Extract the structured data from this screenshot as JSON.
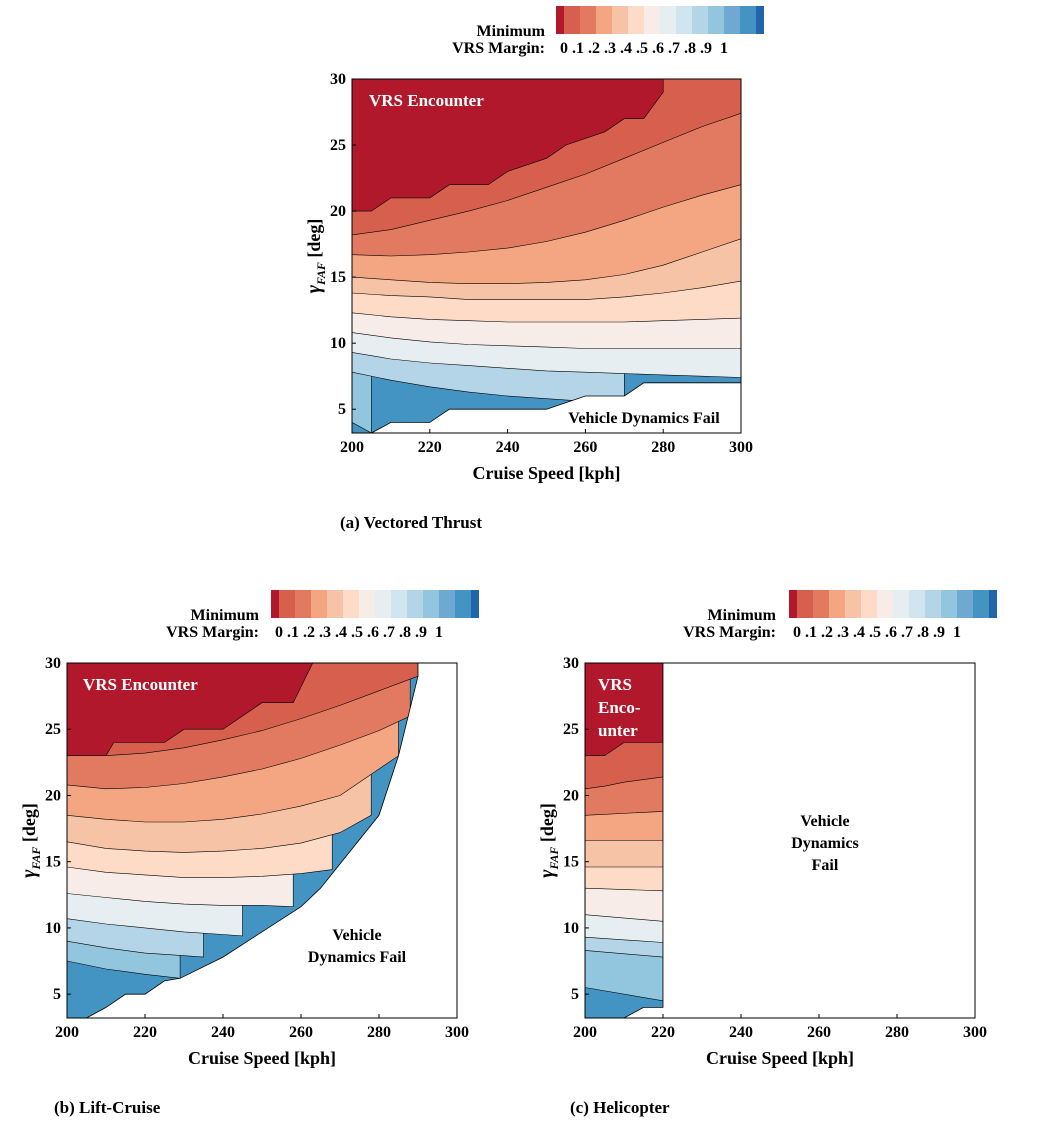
{
  "colorbar": {
    "title_line1": "Minimum",
    "title_line2": "VRS Margin:",
    "tick_labels": [
      "0",
      ".1",
      ".2",
      ".3",
      ".4",
      ".5",
      ".6",
      ".7",
      ".8",
      ".9",
      "1"
    ],
    "colors": [
      "#b2182b",
      "#d6604d",
      "#e17a61",
      "#f4a582",
      "#f7c3a6",
      "#fddbc7",
      "#f7ece7",
      "#e7eef1",
      "#d1e5f0",
      "#b4d4e7",
      "#92c5de",
      "#6fa8d0",
      "#4393c3",
      "#2166ac"
    ]
  },
  "regions": {
    "red_label": "VRS Encounter",
    "helicopter_red_label": [
      "VRS",
      "Enco-",
      "unter"
    ]
  },
  "chart_data": [
    {
      "type": "contour",
      "id": "a",
      "caption": "(a) Vectored Thrust",
      "xlabel": "Cruise Speed [kph]",
      "ylabel_symbol": "γ",
      "ylabel_sub": "FAF",
      "ylabel_unit": "[deg]",
      "xlim": [
        200,
        300
      ],
      "ylim": [
        3.2,
        30
      ],
      "xticks": [
        200,
        220,
        240,
        260,
        280,
        300
      ],
      "yticks": [
        5,
        10,
        15,
        20,
        25,
        30
      ],
      "fail_label": [
        "Vehicle Dynamics Fail"
      ],
      "levels": [
        0,
        0.1,
        0.2,
        0.3,
        0.4,
        0.5,
        0.6,
        0.7,
        0.8,
        0.9,
        1
      ],
      "boundaries": [
        {
          "x": [
            200,
            210,
            220,
            230,
            240,
            250,
            260,
            270,
            280,
            290,
            300
          ],
          "y": [
            18.2,
            18.6,
            19.3,
            20.0,
            20.8,
            21.8,
            22.8,
            24.0,
            25.2,
            26.4,
            27.4
          ]
        },
        {
          "x": [
            200,
            210,
            220,
            230,
            240,
            250,
            260,
            270,
            280,
            290,
            300
          ],
          "y": [
            16.7,
            16.6,
            16.7,
            16.9,
            17.2,
            17.7,
            18.4,
            19.3,
            20.3,
            21.2,
            22.0
          ]
        },
        {
          "x": [
            200,
            210,
            220,
            230,
            240,
            250,
            260,
            270,
            280,
            290,
            300
          ],
          "y": [
            15.0,
            14.8,
            14.6,
            14.5,
            14.5,
            14.6,
            14.8,
            15.2,
            15.9,
            16.9,
            17.9
          ]
        },
        {
          "x": [
            200,
            210,
            220,
            230,
            240,
            250,
            260,
            270,
            280,
            290,
            300
          ],
          "y": [
            13.8,
            13.6,
            13.5,
            13.3,
            13.3,
            13.3,
            13.3,
            13.5,
            13.8,
            14.2,
            14.7
          ]
        },
        {
          "x": [
            200,
            210,
            220,
            230,
            240,
            250,
            260,
            270,
            280,
            290,
            300
          ],
          "y": [
            12.3,
            12.0,
            11.8,
            11.7,
            11.6,
            11.6,
            11.6,
            11.6,
            11.7,
            11.8,
            11.9
          ]
        },
        {
          "x": [
            200,
            210,
            220,
            230,
            240,
            250,
            260,
            270,
            280,
            290,
            300
          ],
          "y": [
            10.8,
            10.4,
            10.1,
            9.9,
            9.8,
            9.7,
            9.6,
            9.6,
            9.6,
            9.6,
            9.6
          ]
        },
        {
          "x": [
            200,
            210,
            220,
            230,
            240,
            250,
            260,
            270,
            280,
            290,
            300
          ],
          "y": [
            9.3,
            8.8,
            8.5,
            8.3,
            8.1,
            7.9,
            7.8,
            7.7,
            7.6,
            7.5,
            7.4
          ]
        },
        {
          "x": [
            200,
            210,
            220,
            230,
            240,
            250,
            260,
            270
          ],
          "y": [
            7.8,
            7.2,
            6.7,
            6.3,
            6.0,
            5.8,
            5.6,
            5.4
          ]
        },
        {
          "x": [
            200,
            205
          ],
          "y": [
            4.0,
            3.2
          ]
        }
      ],
      "vrs_edge": {
        "x": [
          200,
          205,
          205,
          210,
          220,
          220,
          225,
          235,
          240,
          250,
          250,
          255,
          265,
          270,
          275,
          280,
          280
        ],
        "y": [
          20,
          20,
          20,
          21,
          21,
          21,
          22,
          22,
          23,
          24,
          24,
          25,
          26,
          27,
          27,
          29,
          30
        ]
      },
      "fail_edge": {
        "x": [
          200,
          205,
          210,
          220,
          220,
          225,
          245,
          250,
          260,
          270,
          270,
          275,
          300
        ],
        "y": [
          3.2,
          3.2,
          4.0,
          4.0,
          4.0,
          5.0,
          5.0,
          5.0,
          6.0,
          6.0,
          6.0,
          7.0,
          7.0
        ]
      }
    },
    {
      "type": "contour",
      "id": "b",
      "caption": "(b) Lift-Cruise",
      "xlabel": "Cruise Speed [kph]",
      "ylabel_symbol": "γ",
      "ylabel_sub": "FAF",
      "ylabel_unit": "[deg]",
      "xlim": [
        200,
        300
      ],
      "ylim": [
        3.2,
        30
      ],
      "xticks": [
        200,
        220,
        240,
        260,
        280,
        300
      ],
      "yticks": [
        5,
        10,
        15,
        20,
        25,
        30
      ],
      "fail_label": [
        "Vehicle",
        "Dynamics Fail"
      ],
      "levels": [
        0,
        0.1,
        0.2,
        0.3,
        0.4,
        0.5,
        0.6,
        0.7,
        0.8,
        0.9,
        1
      ],
      "boundaries": [
        {
          "x": [
            200,
            210,
            220,
            230,
            240,
            250,
            260,
            270,
            280,
            290
          ],
          "y": [
            23.0,
            23.0,
            23.2,
            23.6,
            24.2,
            24.9,
            25.8,
            26.8,
            27.9,
            29.0
          ]
        },
        {
          "x": [
            200,
            210,
            220,
            230,
            240,
            250,
            260,
            270,
            280,
            288
          ],
          "y": [
            20.8,
            20.5,
            20.6,
            20.9,
            21.4,
            22.0,
            22.8,
            23.8,
            24.9,
            26.0
          ]
        },
        {
          "x": [
            200,
            210,
            220,
            230,
            240,
            250,
            260,
            270,
            280,
            285
          ],
          "y": [
            18.5,
            18.2,
            18.0,
            18.0,
            18.2,
            18.6,
            19.2,
            20.0,
            22.0,
            23.0
          ]
        },
        {
          "x": [
            200,
            210,
            220,
            230,
            240,
            250,
            260,
            270,
            278
          ],
          "y": [
            16.5,
            16.0,
            15.8,
            15.7,
            15.8,
            16.0,
            16.4,
            17.2,
            18.5
          ]
        },
        {
          "x": [
            200,
            210,
            220,
            230,
            240,
            250,
            260,
            268
          ],
          "y": [
            14.6,
            14.2,
            14.0,
            13.8,
            13.8,
            13.9,
            14.1,
            14.4
          ]
        },
        {
          "x": [
            200,
            210,
            220,
            230,
            240,
            250,
            258
          ],
          "y": [
            12.6,
            12.3,
            12.0,
            11.8,
            11.7,
            11.7,
            11.6
          ]
        },
        {
          "x": [
            200,
            210,
            220,
            230,
            240,
            245
          ],
          "y": [
            10.7,
            10.3,
            10.0,
            9.7,
            9.5,
            9.4
          ]
        },
        {
          "x": [
            200,
            210,
            220,
            230,
            235
          ],
          "y": [
            9.0,
            8.5,
            8.1,
            7.9,
            7.8
          ]
        },
        {
          "x": [
            200,
            210,
            220,
            229
          ],
          "y": [
            7.5,
            6.9,
            6.5,
            6.2
          ]
        }
      ],
      "vrs_edge": {
        "x": [
          200,
          210,
          212,
          225,
          230,
          240,
          245,
          250,
          258,
          263
        ],
        "y": [
          23,
          23,
          24,
          24,
          25,
          25,
          26,
          27,
          27,
          30
        ]
      },
      "fail_edge": {
        "x": [
          200,
          205,
          210,
          215,
          220,
          225,
          225,
          229,
          240,
          260,
          265,
          280,
          285,
          290,
          290
        ],
        "y": [
          3.2,
          3.2,
          4.0,
          5.0,
          5.0,
          6.0,
          6.0,
          6.2,
          7.8,
          11.6,
          13.0,
          18.5,
          23.0,
          29.0,
          30.0
        ]
      }
    },
    {
      "type": "contour",
      "id": "c",
      "caption": "(c) Helicopter",
      "xlabel": "Cruise Speed [kph]",
      "ylabel_symbol": "γ",
      "ylabel_sub": "FAF",
      "ylabel_unit": "[deg]",
      "xlim": [
        200,
        300
      ],
      "ylim": [
        3.2,
        30
      ],
      "xticks": [
        200,
        220,
        240,
        260,
        280,
        300
      ],
      "yticks": [
        5,
        10,
        15,
        20,
        25,
        30
      ],
      "fail_label": [
        "Vehicle",
        "Dynamics",
        "Fail"
      ],
      "levels": [
        0,
        0.1,
        0.2,
        0.3,
        0.4,
        0.5,
        0.6,
        0.7,
        0.8,
        0.9,
        1
      ],
      "boundaries": [
        {
          "x": [
            200,
            205,
            210,
            220
          ],
          "y": [
            20.5,
            20.7,
            21.0,
            21.4
          ]
        },
        {
          "x": [
            200,
            220
          ],
          "y": [
            18.5,
            18.8
          ]
        },
        {
          "x": [
            200,
            220
          ],
          "y": [
            16.6,
            16.6
          ]
        },
        {
          "x": [
            200,
            220
          ],
          "y": [
            14.6,
            14.6
          ]
        },
        {
          "x": [
            200,
            220
          ],
          "y": [
            13.0,
            12.8
          ]
        },
        {
          "x": [
            200,
            220
          ],
          "y": [
            11.0,
            10.5
          ]
        },
        {
          "x": [
            200,
            220
          ],
          "y": [
            9.3,
            8.9
          ]
        },
        {
          "x": [
            200,
            220
          ],
          "y": [
            8.3,
            7.8
          ]
        },
        {
          "x": [
            200,
            220
          ],
          "y": [
            5.5,
            4.5
          ]
        }
      ],
      "vrs_edge": {
        "x": [
          200,
          205,
          210,
          220
        ],
        "y": [
          23,
          23,
          24,
          24
        ]
      },
      "fail_edge": {
        "x": [
          200,
          210,
          215,
          220,
          220
        ],
        "y": [
          3.2,
          3.2,
          4.0,
          4.0,
          30
        ]
      }
    }
  ]
}
